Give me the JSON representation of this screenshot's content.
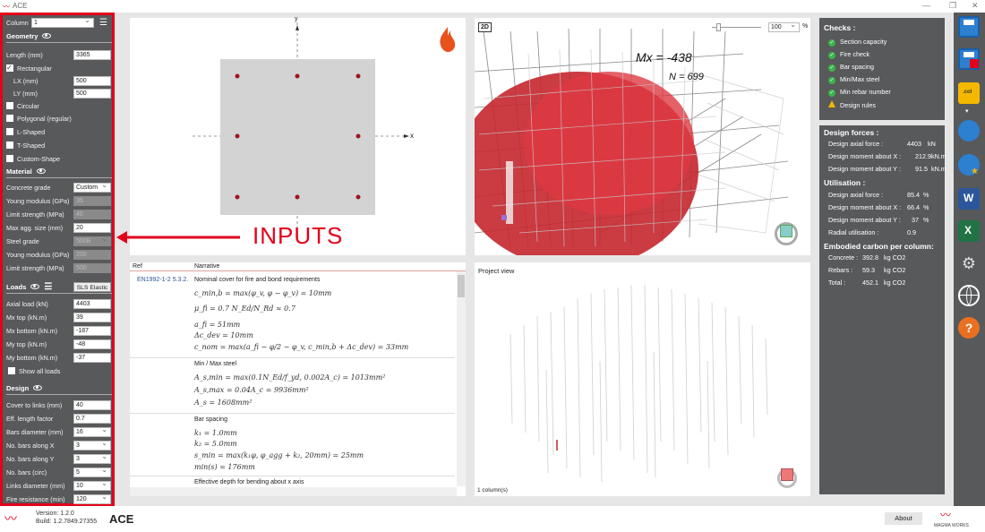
{
  "app": {
    "title": "ACE"
  },
  "sidebar": {
    "column_label": "Column",
    "column_value": "1",
    "geometry": "Geometry",
    "length_label": "Length (mm)",
    "length": "3365",
    "rectangular": "Rectangular",
    "lx_label": "LX (mm)",
    "lx": "500",
    "ly_label": "LY (mm)",
    "ly": "500",
    "circular": "Circular",
    "polygonal": "Polygonal (regular)",
    "lshaped": "L-Shaped",
    "tshaped": "T-Shaped",
    "custom": "Custom-Shape",
    "material": "Material",
    "concrete_grade_label": "Concrete grade",
    "concrete_grade": "Custom",
    "young_label": "Young modulus (GPa)",
    "young": "35",
    "limit_label": "Limit strength (MPa)",
    "limit": "40",
    "agg_label": "Max agg. size (mm)",
    "agg": "20",
    "steel_label": "Steel grade",
    "steel": "500B",
    "young2_label": "Young modulus (GPa)",
    "young2": "200",
    "limit2_label": "Limit strength (MPa)",
    "limit2": "500",
    "loads": "Loads",
    "loads_mode": "SLS Elastic",
    "axial_label": "Axial load (kN)",
    "axial": "4403",
    "mxtop_label": "Mx top (kN.m)",
    "mxtop": "39",
    "mxbot_label": "Mx bottom (kN.m)",
    "mxbot": "-187",
    "mytop_label": "My top (kN.m)",
    "mytop": "-48",
    "mybot_label": "My bottom (kN.m)",
    "mybot": "-37",
    "show_all": "Show all loads",
    "design": "Design",
    "cover_label": "Cover to links (mm)",
    "cover": "40",
    "eff_label": "Eff. length factor",
    "eff": "0.7",
    "bard_label": "Bars diameter (mm)",
    "bard": "16",
    "nbx_label": "No. bars along X",
    "nbx": "3",
    "nby_label": "No. bars along Y",
    "nby": "3",
    "nbc_label": "No. bars (circ)",
    "nbc": "5",
    "links_label": "Links diameter (mm)",
    "links": "10",
    "fire_label": "Fire resistance (min)",
    "fire": "120"
  },
  "section": {
    "y_axis": "y",
    "x_axis": "x",
    "inputs_label": "INPUTS"
  },
  "view3d": {
    "mode": "2D",
    "zoom": "100",
    "pct": "%",
    "mx_label": "Mx = -438",
    "n_label": "N = 699"
  },
  "narrative": {
    "col_ref": "Ref",
    "col_narr": "Narrative",
    "ref1": "EN1992-1-2 5.3.2.",
    "t1": "Nominal cover for fire and bond requirements",
    "e1": "c_min,b = max(φ_v, φ − φ_v) = 10mm",
    "e2": "μ_fi = 0.7 N_Ed/N_Rd ≈ 0.7",
    "e3": "a_fi = 51mm",
    "e4": "Δc_dev = 10mm",
    "e5": "c_nom = max(a_fi − φ/2 − φ_v, c_min,b + Δc_dev) = 33mm",
    "t2": "Min / Max steel",
    "e6": "A_s,min = max(0.1N_Ed/f_yd, 0.002A_c) = 1013mm²",
    "e7": "A_s,max = 0.04A_c = 9936mm²",
    "e8": "A_s = 1608mm²",
    "t3": "Bar spacing",
    "e9": "k₁ = 1.0mm",
    "e10": "k₂ = 5.0mm",
    "e11": "s_min = max(k₁φ, φ_agg + k₂, 20mm) = 25mm",
    "e12": "min(s) = 176mm",
    "t4": "Effective depth for bending about x axis"
  },
  "project": {
    "title": "Project view",
    "count": "1 column(s)"
  },
  "checks": {
    "title": "Checks :",
    "items": [
      "Section capacity",
      "Fire check",
      "Bar spacing",
      "Min/Max steel",
      "Min rebar number",
      "Design rules"
    ]
  },
  "forces": {
    "title": "Design forces :",
    "axial_l": "Design axial force :",
    "axial_v": "4403",
    "axial_u": "kN",
    "mx_l": "Design moment about X :",
    "mx_v": "212.9",
    "mx_u": "kN.m",
    "my_l": "Design moment about Y :",
    "my_v": "91.5",
    "my_u": "kN.m",
    "util_title": "Utilisation :",
    "ua_l": "Design axial force :",
    "ua_v": "85.4",
    "ua_u": "%",
    "ux_l": "Design moment about X :",
    "ux_v": "66.4",
    "ux_u": "%",
    "uy_l": "Design moment about Y :",
    "uy_v": "37",
    "uy_u": "%",
    "ur_l": "Radial utilisation :",
    "ur_v": "0.9",
    "carbon_title": "Embodied carbon per column:",
    "c1_l": "Concrete :",
    "c1_v": "392.8",
    "c1_u": "kg CO2",
    "c2_l": "Rebars :",
    "c2_v": "59.3",
    "c2_u": "kg CO2",
    "c3_l": "Total :",
    "c3_v": "452.1",
    "c3_u": "kg CO2"
  },
  "footer": {
    "version": "Version: 1.2.0",
    "build": "Build: 1.2.7849.27355",
    "app": "ACE",
    "about": "About",
    "brand": "MAGMA WORKS"
  }
}
